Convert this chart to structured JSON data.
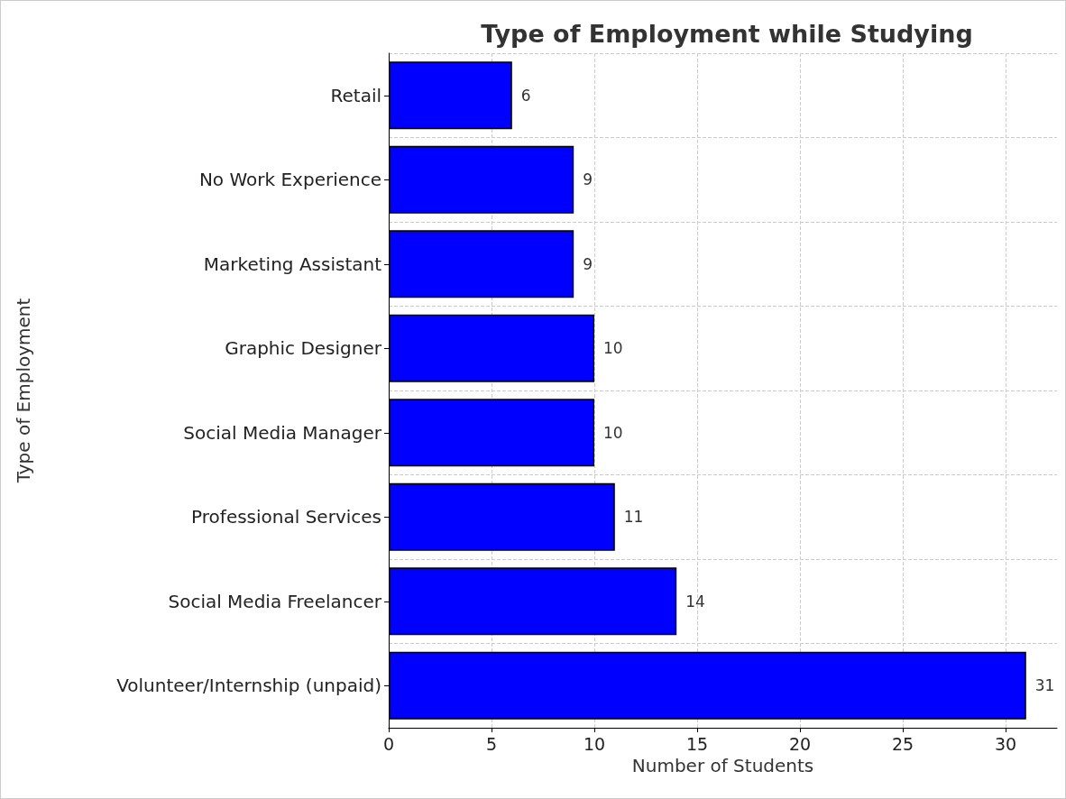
{
  "chart_data": {
    "type": "bar",
    "orientation": "horizontal",
    "title": "Type of Employment while Studying",
    "xlabel": "Number of Students",
    "ylabel": "Type of Employment",
    "categories": [
      "Retail",
      "No Work Experience",
      "Marketing Assistant",
      "Graphic Designer",
      "Social Media Manager",
      "Professional Services",
      "Social Media Freelancer",
      "Volunteer/Internship (unpaid)"
    ],
    "values": [
      6,
      9,
      9,
      10,
      10,
      11,
      14,
      31
    ],
    "color": "#0000ff",
    "xlim": [
      0,
      32.5
    ],
    "xticks": [
      0,
      5,
      10,
      15,
      20,
      25,
      30
    ],
    "grid": true,
    "data_labels": true
  }
}
